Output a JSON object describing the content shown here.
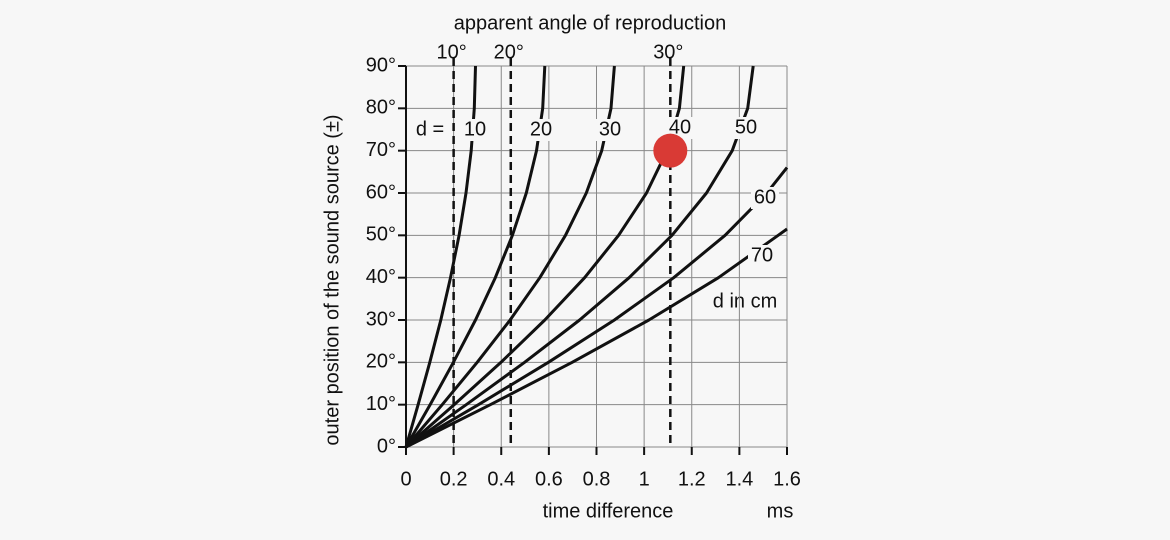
{
  "chart_data": {
    "type": "line",
    "title": "apparent angle of reproduction",
    "x_label": "time difference",
    "x_unit": "ms",
    "y_label": "outer position of the sound source (±)",
    "d_prefix": "d =",
    "units_note": "d in cm",
    "xlim": [
      0,
      1.6
    ],
    "ylim": [
      0,
      90
    ],
    "xticks": [
      0,
      0.2,
      0.4,
      0.6,
      0.8,
      1,
      1.2,
      1.4,
      1.6
    ],
    "yticks": [
      {
        "value": 0,
        "label": "0°"
      },
      {
        "value": 10,
        "label": "10°"
      },
      {
        "value": 20,
        "label": "20°"
      },
      {
        "value": 30,
        "label": "30°"
      },
      {
        "value": 40,
        "label": "40°"
      },
      {
        "value": 50,
        "label": "50°"
      },
      {
        "value": 60,
        "label": "60°"
      },
      {
        "value": 70,
        "label": "70°"
      },
      {
        "value": 80,
        "label": "80°"
      },
      {
        "value": 90,
        "label": "90°"
      }
    ],
    "grid": true,
    "series": [
      {
        "name": "10",
        "color": "#111111",
        "x": [
          0,
          0.051,
          0.1,
          0.146,
          0.187,
          0.223,
          0.252,
          0.274,
          0.287,
          0.292
        ],
        "values": [
          0,
          10,
          20,
          30,
          40,
          50,
          60,
          70,
          80,
          90
        ]
      },
      {
        "name": "20",
        "color": "#111111",
        "x": [
          0,
          0.101,
          0.199,
          0.292,
          0.375,
          0.447,
          0.505,
          0.548,
          0.574,
          0.583
        ],
        "values": [
          0,
          10,
          20,
          30,
          40,
          50,
          60,
          70,
          80,
          90
        ]
      },
      {
        "name": "30",
        "color": "#111111",
        "x": [
          0,
          0.152,
          0.299,
          0.437,
          0.562,
          0.67,
          0.757,
          0.822,
          0.861,
          0.875
        ],
        "values": [
          0,
          10,
          20,
          30,
          40,
          50,
          60,
          70,
          80,
          90
        ]
      },
      {
        "name": "40",
        "color": "#111111",
        "x": [
          0,
          0.202,
          0.399,
          0.583,
          0.75,
          0.893,
          1.01,
          1.096,
          1.148,
          1.166
        ],
        "values": [
          0,
          10,
          20,
          30,
          40,
          50,
          60,
          70,
          80,
          90
        ]
      },
      {
        "name": "50",
        "color": "#111111",
        "x": [
          0,
          0.253,
          0.498,
          0.729,
          0.937,
          1.117,
          1.262,
          1.37,
          1.435,
          1.458
        ],
        "values": [
          0,
          10,
          20,
          30,
          40,
          50,
          60,
          70,
          80,
          90
        ]
      },
      {
        "name": "60",
        "color": "#111111",
        "x": [
          0,
          0.304,
          0.598,
          0.875,
          1.124,
          1.34,
          1.515,
          1.6
        ],
        "values": [
          0,
          10,
          20,
          30,
          40,
          50,
          60,
          66
        ]
      },
      {
        "name": "70",
        "color": "#111111",
        "x": [
          0,
          0.354,
          0.698,
          1.02,
          1.312,
          1.563,
          1.6
        ],
        "values": [
          0,
          10,
          20,
          30,
          40,
          50,
          51.5
        ]
      }
    ],
    "reference_lines": [
      {
        "x": 0.2,
        "label": "10°"
      },
      {
        "x": 0.44,
        "label": "20°"
      },
      {
        "x": 1.11,
        "label": "30°"
      }
    ],
    "marker": {
      "x": 1.11,
      "y": 70,
      "color": "#d93a35"
    }
  }
}
